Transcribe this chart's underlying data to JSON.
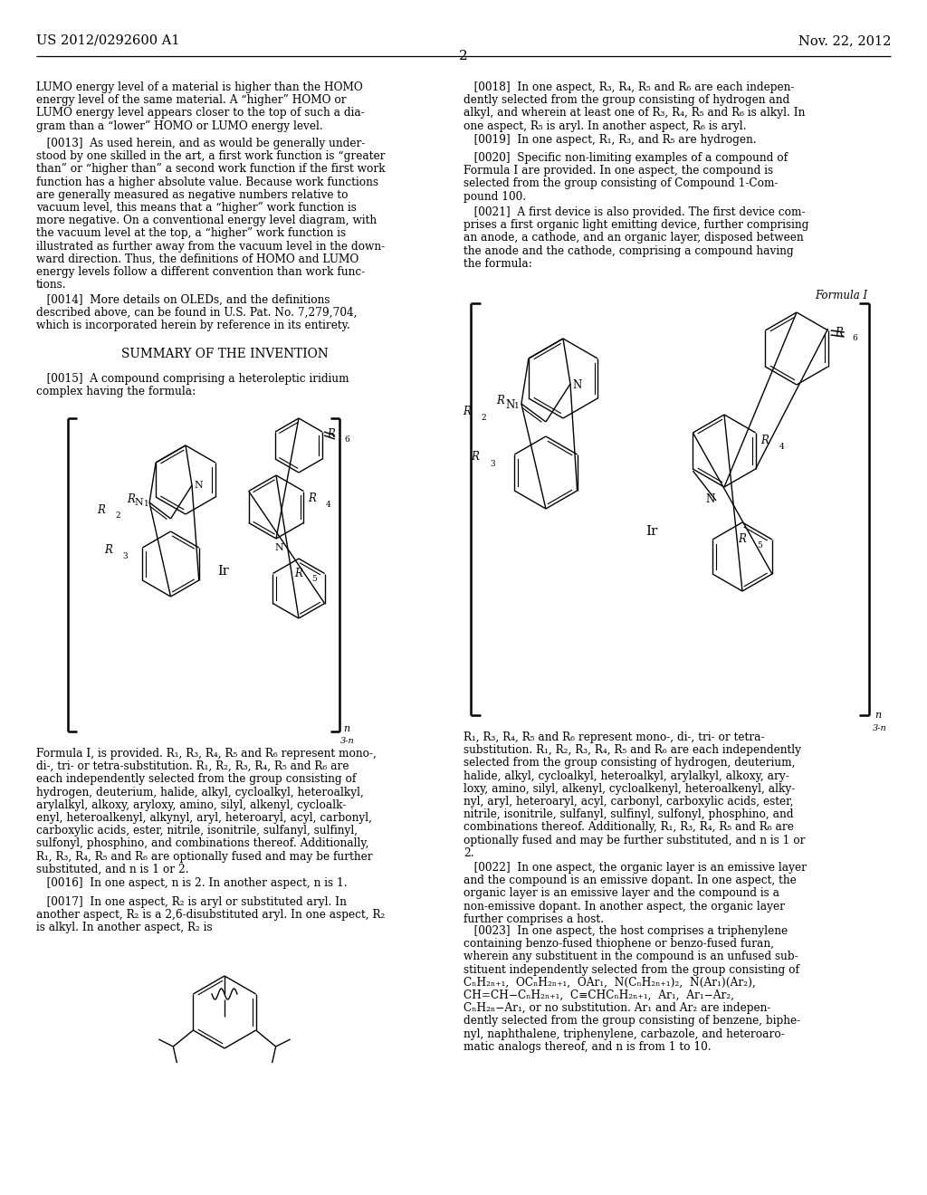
{
  "background": "#ffffff",
  "header_left": "US 2012/0292600 A1",
  "header_right": "Nov. 22, 2012",
  "page_num": "2"
}
